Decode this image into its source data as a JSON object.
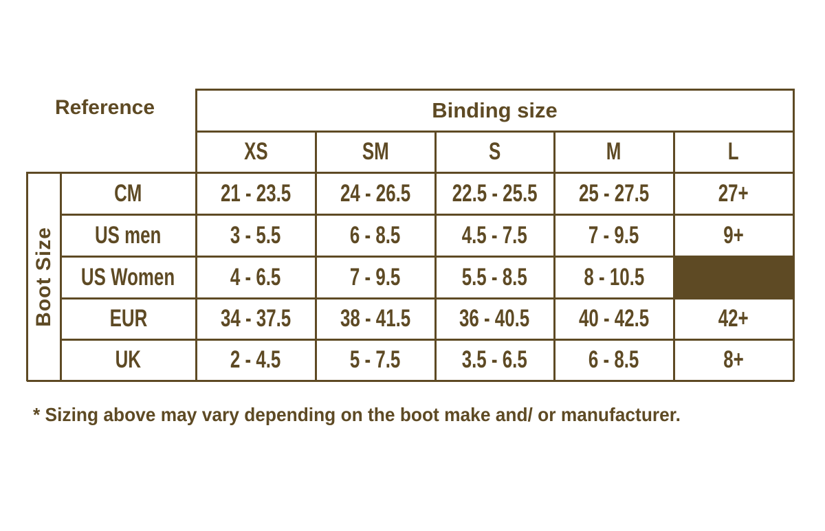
{
  "reference_label": "Reference",
  "binding_header": "Binding size",
  "boot_size_label": "Boot Size",
  "columns": [
    "XS",
    "SM",
    "S",
    "M",
    "L"
  ],
  "rows": [
    {
      "label": "CM",
      "values": [
        "21 - 23.5",
        "24 - 26.5",
        "22.5 - 25.5",
        "25 - 27.5",
        "27+"
      ]
    },
    {
      "label": "US men",
      "values": [
        "3 - 5.5",
        "6 - 8.5",
        "4.5 - 7.5",
        "7 - 9.5",
        "9+"
      ]
    },
    {
      "label": "US Women",
      "values": [
        "4 - 6.5",
        "7 - 9.5",
        "5.5 - 8.5",
        "8 - 10.5",
        ""
      ]
    },
    {
      "label": "EUR",
      "values": [
        "34 - 37.5",
        "38 - 41.5",
        "36 - 40.5",
        "40 - 42.5",
        "42+"
      ]
    },
    {
      "label": "UK",
      "values": [
        "2 - 4.5",
        "5 - 7.5",
        "3.5 - 6.5",
        "6 - 8.5",
        "8+"
      ]
    }
  ],
  "footnote": "* Sizing above may vary depending on the boot make and/ or manufacturer.",
  "colors": {
    "ink": "#5e4a24",
    "background": "#ffffff"
  }
}
